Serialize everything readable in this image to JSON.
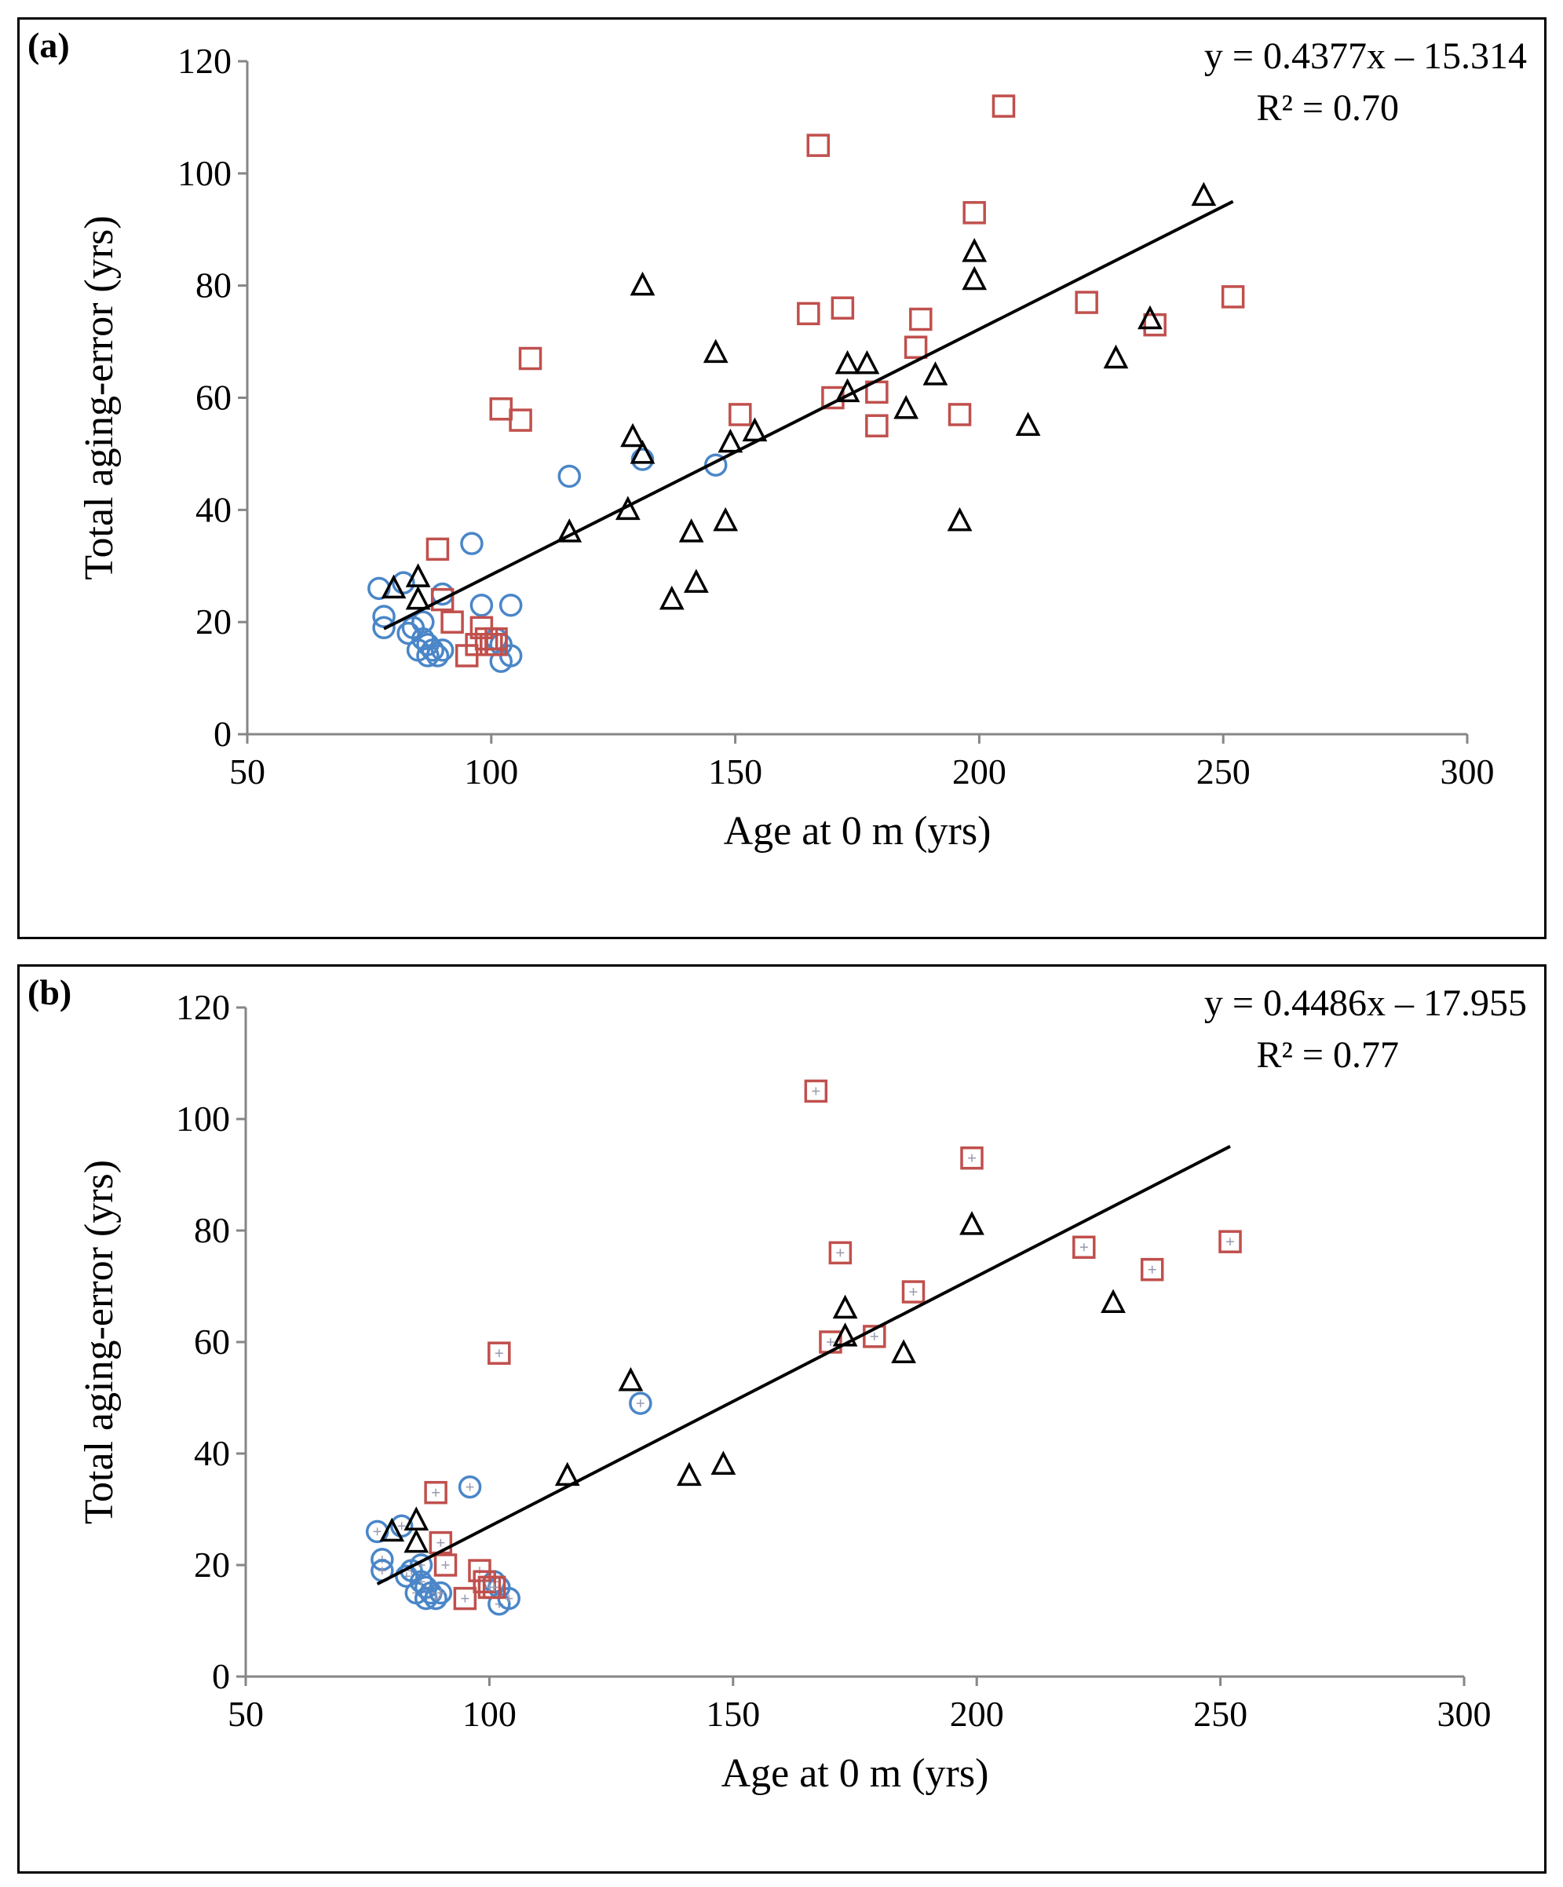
{
  "colors": {
    "circle": "#4a86c8",
    "square": "#c0504d",
    "triangle": "#000000",
    "axis": "#868686",
    "trend": "#000000",
    "cross": "#9a9ab0"
  },
  "chart_data": [
    {
      "type": "scatter",
      "panel_label": "(a)",
      "xlabel": "Age at 0 m (yrs)",
      "ylabel": "Total aging-error (yrs)",
      "xlim": [
        50,
        300
      ],
      "ylim": [
        0,
        120
      ],
      "x_ticks": [
        "50",
        "100",
        "150",
        "200",
        "250",
        "300"
      ],
      "y_ticks": [
        "0",
        "20",
        "40",
        "60",
        "80",
        "100",
        "120"
      ],
      "equation": "y = 0.4377x – 15.314",
      "r2": "R² = 0.70",
      "trend": {
        "x": [
          78,
          252
        ],
        "y": [
          18.8,
          95.0
        ]
      },
      "series": [
        {
          "name": "circles",
          "marker": "circle",
          "crossed": false,
          "points": [
            [
              77,
              26
            ],
            [
              78,
              21
            ],
            [
              78,
              19
            ],
            [
              82,
              27
            ],
            [
              83,
              18
            ],
            [
              84,
              19
            ],
            [
              85,
              15
            ],
            [
              86,
              20
            ],
            [
              86,
              17
            ],
            [
              87,
              16
            ],
            [
              87,
              14
            ],
            [
              88,
              15
            ],
            [
              89,
              14
            ],
            [
              90,
              15
            ],
            [
              90,
              25
            ],
            [
              96,
              34
            ],
            [
              98,
              23
            ],
            [
              101,
              17
            ],
            [
              102,
              13
            ],
            [
              102,
              16
            ],
            [
              104,
              23
            ],
            [
              104,
              14
            ],
            [
              116,
              46
            ],
            [
              131,
              49
            ],
            [
              146,
              48
            ]
          ]
        },
        {
          "name": "squares",
          "marker": "square",
          "crossed": false,
          "points": [
            [
              89,
              33
            ],
            [
              90,
              24
            ],
            [
              92,
              20
            ],
            [
              95,
              14
            ],
            [
              97,
              16
            ],
            [
              98,
              19
            ],
            [
              99,
              17
            ],
            [
              100,
              16
            ],
            [
              101,
              17
            ],
            [
              101,
              16
            ],
            [
              102,
              58
            ],
            [
              106,
              56
            ],
            [
              108,
              67
            ],
            [
              151,
              57
            ],
            [
              165,
              75
            ],
            [
              167,
              105
            ],
            [
              170,
              60
            ],
            [
              172,
              76
            ],
            [
              179,
              61
            ],
            [
              179,
              55
            ],
            [
              187,
              69
            ],
            [
              188,
              74
            ],
            [
              196,
              57
            ],
            [
              199,
              93
            ],
            [
              205,
              112
            ],
            [
              222,
              77
            ],
            [
              236,
              73
            ],
            [
              252,
              78
            ]
          ]
        },
        {
          "name": "triangles",
          "marker": "triangle",
          "crossed": false,
          "points": [
            [
              80,
              26
            ],
            [
              85,
              28
            ],
            [
              85,
              24
            ],
            [
              116,
              36
            ],
            [
              128,
              40
            ],
            [
              129,
              53
            ],
            [
              131,
              80
            ],
            [
              131,
              50
            ],
            [
              137,
              24
            ],
            [
              141,
              36
            ],
            [
              142,
              27
            ],
            [
              146,
              68
            ],
            [
              148,
              38
            ],
            [
              149,
              52
            ],
            [
              154,
              54
            ],
            [
              173,
              66
            ],
            [
              173,
              61
            ],
            [
              177,
              66
            ],
            [
              185,
              58
            ],
            [
              191,
              64
            ],
            [
              196,
              38
            ],
            [
              199,
              86
            ],
            [
              199,
              81
            ],
            [
              210,
              55
            ],
            [
              228,
              67
            ],
            [
              235,
              74
            ],
            [
              246,
              96
            ]
          ]
        }
      ]
    },
    {
      "type": "scatter",
      "panel_label": "(b)",
      "xlabel": "Age at 0 m (yrs)",
      "ylabel": "Total aging-error (yrs)",
      "xlim": [
        50,
        300
      ],
      "ylim": [
        0,
        120
      ],
      "x_ticks": [
        "50",
        "100",
        "150",
        "200",
        "250",
        "300"
      ],
      "y_ticks": [
        "0",
        "20",
        "40",
        "60",
        "80",
        "100",
        "120"
      ],
      "equation": "y = 0.4486x – 17.955",
      "r2": "R² = 0.77",
      "trend": {
        "x": [
          77,
          252
        ],
        "y": [
          16.6,
          95.1
        ]
      },
      "series": [
        {
          "name": "circles",
          "marker": "circle",
          "crossed": true,
          "points": [
            [
              77,
              26
            ],
            [
              78,
              21
            ],
            [
              78,
              19
            ],
            [
              82,
              27
            ],
            [
              83,
              18
            ],
            [
              84,
              19
            ],
            [
              85,
              15
            ],
            [
              86,
              20
            ],
            [
              86,
              17
            ],
            [
              87,
              16
            ],
            [
              87,
              14
            ],
            [
              88,
              15
            ],
            [
              89,
              14
            ],
            [
              90,
              15
            ],
            [
              96,
              34
            ],
            [
              101,
              17
            ],
            [
              102,
              13
            ],
            [
              102,
              16
            ],
            [
              104,
              14
            ],
            [
              131,
              49
            ]
          ]
        },
        {
          "name": "squares",
          "marker": "square",
          "crossed": true,
          "points": [
            [
              89,
              33
            ],
            [
              90,
              24
            ],
            [
              91,
              20
            ],
            [
              95,
              14
            ],
            [
              98,
              19
            ],
            [
              99,
              17
            ],
            [
              100,
              16
            ],
            [
              101,
              16
            ],
            [
              102,
              58
            ],
            [
              167,
              105
            ],
            [
              170,
              60
            ],
            [
              172,
              76
            ],
            [
              179,
              61
            ],
            [
              187,
              69
            ],
            [
              199,
              93
            ],
            [
              222,
              77
            ],
            [
              236,
              73
            ],
            [
              252,
              78
            ]
          ]
        },
        {
          "name": "triangles",
          "marker": "triangle",
          "crossed": false,
          "points": [
            [
              80,
              26
            ],
            [
              85,
              28
            ],
            [
              85,
              24
            ],
            [
              116,
              36
            ],
            [
              129,
              53
            ],
            [
              141,
              36
            ],
            [
              148,
              38
            ],
            [
              173,
              66
            ],
            [
              173,
              61
            ],
            [
              185,
              58
            ],
            [
              199,
              81
            ],
            [
              228,
              67
            ]
          ]
        }
      ]
    }
  ]
}
